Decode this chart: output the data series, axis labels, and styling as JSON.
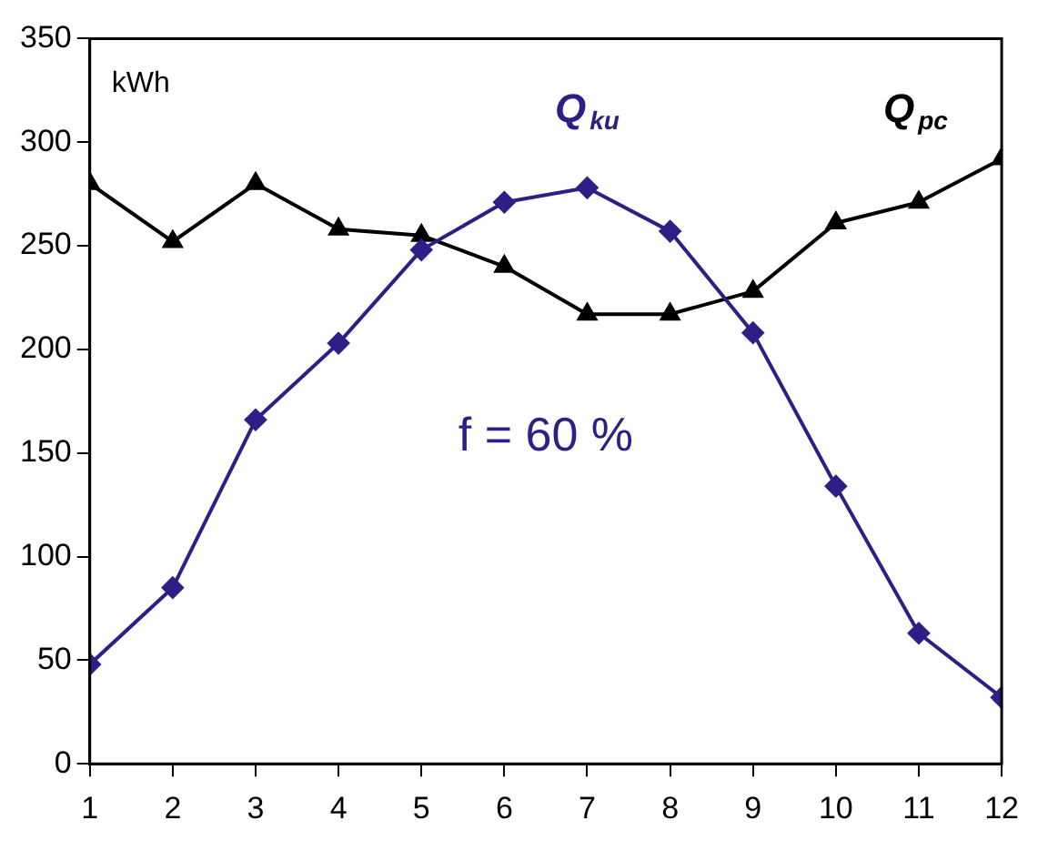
{
  "chart_data": {
    "type": "line",
    "ylabel": "kWh",
    "annotations": [
      "f = 60 %"
    ],
    "x": [
      1,
      2,
      3,
      4,
      5,
      6,
      7,
      8,
      9,
      10,
      11,
      12
    ],
    "xlim": [
      1,
      12
    ],
    "xticks": [
      1,
      2,
      3,
      4,
      5,
      6,
      7,
      8,
      9,
      10,
      11,
      12
    ],
    "ylim": [
      0,
      350
    ],
    "yticks": [
      0,
      50,
      100,
      150,
      200,
      250,
      300,
      350
    ],
    "grid": false,
    "legend": false,
    "series": [
      {
        "name": "Q$_{ku}$",
        "color": "#2e1f87",
        "marker": "diamond",
        "values": [
          48,
          85,
          166,
          203,
          248,
          271,
          278,
          257,
          208,
          134,
          63,
          32
        ]
      },
      {
        "name": "Q$_{pc}$",
        "color": "#000000",
        "marker": "triangle",
        "values": [
          280,
          252,
          280,
          258,
          255,
          240,
          217,
          217,
          228,
          261,
          271,
          292
        ]
      }
    ]
  }
}
